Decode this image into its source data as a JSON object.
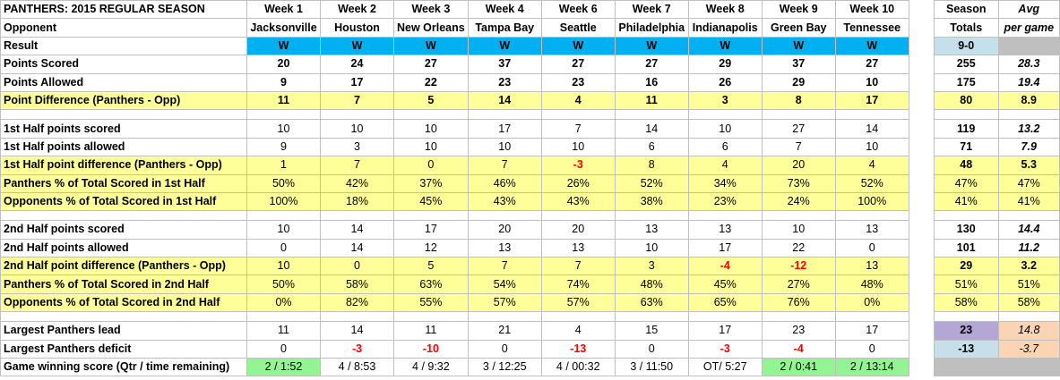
{
  "title": "PANTHERS:  2015 REGULAR SEASON",
  "opponent_label": "Opponent",
  "weeks": [
    "Week 1",
    "Week 2",
    "Week 3",
    "Week 4",
    "Week 6",
    "Week 7",
    "Week 8",
    "Week 9",
    "Week 10"
  ],
  "opponents": [
    "Jacksonville",
    "Houston",
    "New Orleans",
    "Tampa Bay",
    "Seattle",
    "Philadelphia",
    "Indianapolis",
    "Green Bay",
    "Tennessee"
  ],
  "season_header": [
    "Season",
    "Totals"
  ],
  "avg_header": [
    "Avg",
    "per game"
  ],
  "rows": {
    "result": {
      "label": "Result",
      "values": [
        "W",
        "W",
        "W",
        "W",
        "W",
        "W",
        "W",
        "W",
        "W"
      ],
      "total": "9-0",
      "avg": ""
    },
    "points_scored": {
      "label": "Points Scored",
      "values": [
        "20",
        "24",
        "27",
        "37",
        "27",
        "27",
        "29",
        "37",
        "27"
      ],
      "total": "255",
      "avg": "28.3"
    },
    "points_allowed": {
      "label": "Points Allowed",
      "values": [
        "9",
        "17",
        "22",
        "23",
        "23",
        "16",
        "26",
        "29",
        "10"
      ],
      "total": "175",
      "avg": "19.4"
    },
    "point_diff": {
      "label": "Point Difference (Panthers - Opp)",
      "values": [
        "11",
        "7",
        "5",
        "14",
        "4",
        "11",
        "3",
        "8",
        "17"
      ],
      "total": "80",
      "avg": "8.9"
    },
    "h1_scored": {
      "label": "1st Half points scored",
      "values": [
        "10",
        "10",
        "10",
        "17",
        "7",
        "14",
        "10",
        "27",
        "14"
      ],
      "total": "119",
      "avg": "13.2"
    },
    "h1_allowed": {
      "label": "1st Half points allowed",
      "values": [
        "9",
        "3",
        "10",
        "10",
        "10",
        "6",
        "6",
        "7",
        "10"
      ],
      "total": "71",
      "avg": "7.9"
    },
    "h1_diff": {
      "label": "1st Half point difference (Panthers - Opp)",
      "values": [
        "1",
        "7",
        "0",
        "7",
        "-3",
        "8",
        "4",
        "20",
        "4"
      ],
      "total": "48",
      "avg": "5.3"
    },
    "h1_pan_pct": {
      "label": "Panthers % of Total Scored in 1st Half",
      "values": [
        "50%",
        "42%",
        "37%",
        "46%",
        "26%",
        "52%",
        "34%",
        "73%",
        "52%"
      ],
      "total": "47%",
      "avg": "47%"
    },
    "h1_opp_pct": {
      "label": "Opponents % of Total Scored in 1st Half",
      "values": [
        "100%",
        "18%",
        "45%",
        "43%",
        "43%",
        "38%",
        "23%",
        "24%",
        "100%"
      ],
      "total": "41%",
      "avg": "41%"
    },
    "h2_scored": {
      "label": "2nd Half points scored",
      "values": [
        "10",
        "14",
        "17",
        "20",
        "20",
        "13",
        "13",
        "10",
        "13"
      ],
      "total": "130",
      "avg": "14.4"
    },
    "h2_allowed": {
      "label": "2nd Half points allowed",
      "values": [
        "0",
        "14",
        "12",
        "13",
        "13",
        "10",
        "17",
        "22",
        "0"
      ],
      "total": "101",
      "avg": "11.2"
    },
    "h2_diff": {
      "label": "2nd Half point difference (Panthers - Opp)",
      "values": [
        "10",
        "0",
        "5",
        "7",
        "7",
        "3",
        "-4",
        "-12",
        "13"
      ],
      "total": "29",
      "avg": "3.2"
    },
    "h2_pan_pct": {
      "label": "Panthers % of Total Scored in 2nd Half",
      "values": [
        "50%",
        "58%",
        "63%",
        "54%",
        "74%",
        "48%",
        "45%",
        "27%",
        "48%"
      ],
      "total": "51%",
      "avg": "51%"
    },
    "h2_opp_pct": {
      "label": "Opponents % of Total Scored in 2nd Half",
      "values": [
        "0%",
        "82%",
        "55%",
        "57%",
        "57%",
        "63%",
        "65%",
        "76%",
        "0%"
      ],
      "total": "58%",
      "avg": "58%"
    },
    "largest_lead": {
      "label": "Largest Panthers lead",
      "values": [
        "11",
        "14",
        "11",
        "21",
        "4",
        "15",
        "17",
        "23",
        "17"
      ],
      "total": "23",
      "avg": "14.8"
    },
    "largest_deficit": {
      "label": "Largest Panthers deficit",
      "values": [
        "0",
        "-3",
        "-10",
        "0",
        "-13",
        "0",
        "-3",
        "-4",
        "0"
      ],
      "total": "-13",
      "avg": "-3.7"
    },
    "winning_score": {
      "label": "Game winning score (Qtr / time remaining)",
      "values": [
        "2 / 1:52",
        "4 / 8:53",
        "4 / 9:32",
        "3 / 12:25",
        "4 /  00:32",
        "3 / 11:50",
        "OT/ 5:27",
        "2 / 0:41",
        "2 / 13:14"
      ],
      "total": "",
      "avg": ""
    }
  },
  "colors": {
    "result_fill": "#00b0f0",
    "highlight_yellow": "#ffff99",
    "negative_red": "#ff0000",
    "win_green": "#92f492",
    "total_blue": "#c5e0eb",
    "avg_gray": "#bfbfbf",
    "lead_purple": "#b4a7d6",
    "avg_peach": "#fbd4b4"
  }
}
